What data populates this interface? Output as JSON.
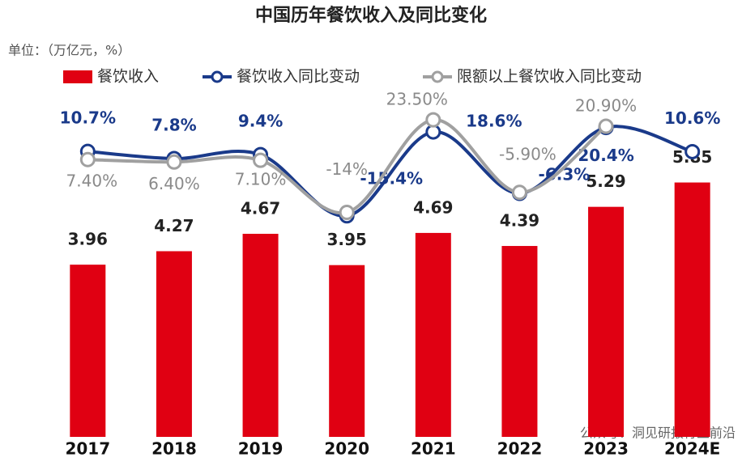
{
  "chart_data": {
    "type": "bar",
    "title": "中国历年餐饮收入及同比变化",
    "subtitle": "单位：（万亿元，%）",
    "categories": [
      "2017",
      "2018",
      "2019",
      "2020",
      "2021",
      "2022",
      "2023",
      "2024E"
    ],
    "ylim": [
      0,
      8
    ],
    "y2lim": [
      -105,
      36
    ],
    "series": [
      {
        "name": "餐饮收入",
        "type": "bar",
        "color": "#e00012",
        "values": [
          3.96,
          4.27,
          4.67,
          3.95,
          4.69,
          4.39,
          5.29,
          5.85
        ]
      },
      {
        "name": "餐饮收入同比变动",
        "type": "line",
        "axis": "y2",
        "color": "#1a3a8a",
        "values": [
          10.7,
          7.8,
          9.4,
          -15.4,
          18.6,
          -6.3,
          20.4,
          10.6
        ],
        "value_labels": [
          "10.7%",
          "7.8%",
          "9.4%",
          "-15.4%",
          "18.6%",
          "-6.3%",
          "20.4%",
          "10.6%"
        ]
      },
      {
        "name": "限额以上餐饮收入同比变动",
        "type": "line",
        "axis": "y2",
        "color": "#a0a0a0",
        "values": [
          7.4,
          6.4,
          7.1,
          -14,
          23.5,
          -5.9,
          20.9,
          null
        ],
        "value_labels": [
          "7.40%",
          "6.40%",
          "7.10%",
          "-14%",
          "23.50%",
          "-5.90%",
          "20.90%",
          null
        ]
      }
    ],
    "annotation": "公众号：洞见研报行业前沿"
  }
}
